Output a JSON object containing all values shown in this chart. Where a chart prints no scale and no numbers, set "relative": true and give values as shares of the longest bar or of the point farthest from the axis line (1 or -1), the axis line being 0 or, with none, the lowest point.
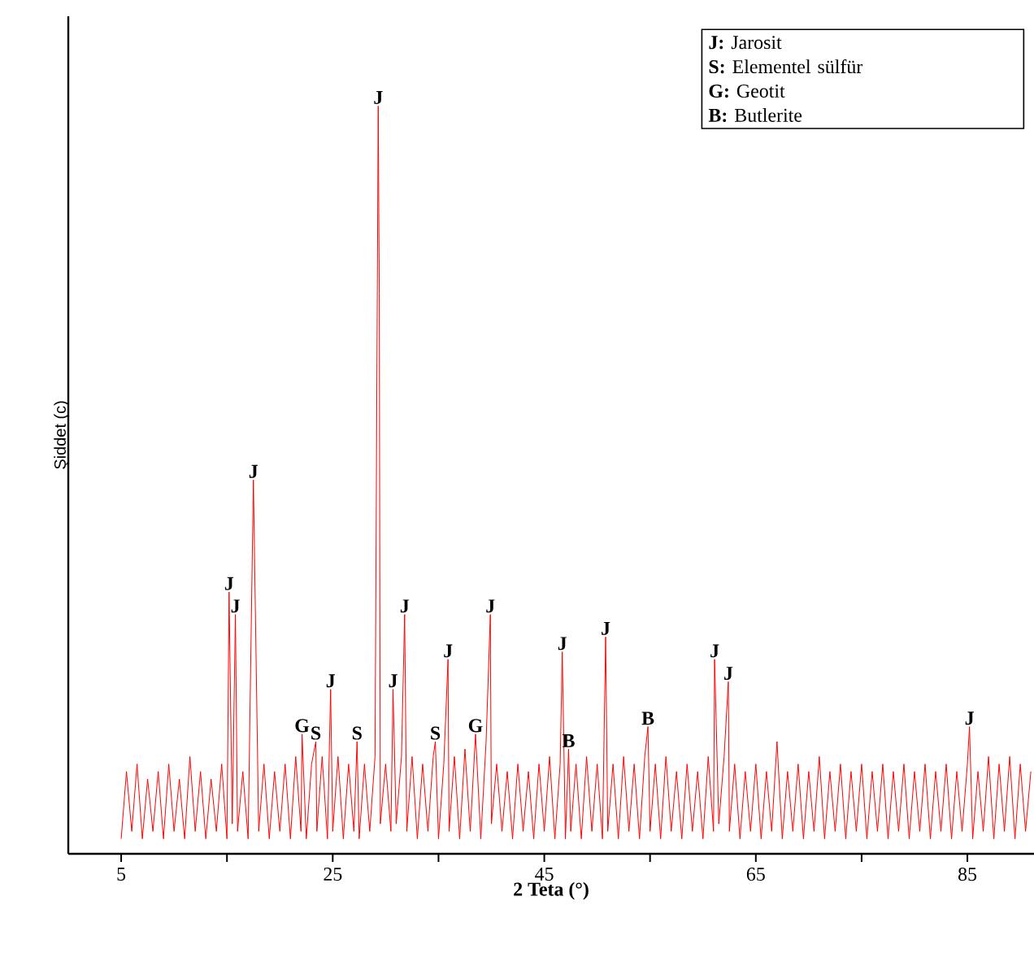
{
  "chart_data": {
    "type": "line",
    "relative": true,
    "xlabel": "2 Teta (°)",
    "ylabel": "Şiddet (c)",
    "color": "#ff0000",
    "tick_labels": "x",
    "xlim": [
      0,
      91.3
    ],
    "xticks": [
      5,
      {
        "value": 15,
        "label": null
      },
      25,
      {
        "value": 35,
        "label": null
      },
      45,
      {
        "value": 55,
        "label": null
      },
      65,
      {
        "value": 75,
        "label": null
      },
      85
    ],
    "x": [
      5,
      5.5,
      6,
      6.5,
      7,
      7.5,
      8,
      8.5,
      9,
      9.5,
      10,
      10.5,
      11,
      11.5,
      12,
      12.5,
      13,
      13.5,
      14,
      14.5,
      15,
      15.2,
      15.5,
      15.8,
      16,
      16.5,
      17,
      17.5,
      18,
      18.5,
      19,
      19.5,
      20,
      20.5,
      21,
      21.5,
      22,
      22.1,
      22.5,
      23,
      23.4,
      23.5,
      24,
      24.5,
      24.8,
      25,
      25.5,
      26,
      26.5,
      27,
      27.3,
      27.5,
      28,
      28.5,
      29,
      29.3,
      29.4,
      29.5,
      30,
      30.5,
      30.7,
      31,
      31.5,
      31.8,
      32,
      32.5,
      33,
      33.5,
      34,
      34.5,
      34.7,
      35,
      35.5,
      35.9,
      36,
      36.5,
      37,
      37.5,
      38,
      38.5,
      39,
      39.5,
      39.9,
      40,
      40.5,
      41,
      41.5,
      42,
      42.5,
      43,
      43.5,
      44,
      44.5,
      45,
      45.5,
      46,
      46.5,
      46.7,
      47,
      47.3,
      47.5,
      48,
      48.5,
      49,
      49.5,
      50,
      50.5,
      50.8,
      51,
      51.5,
      52,
      52.5,
      53,
      53.5,
      54,
      54.5,
      54.8,
      55,
      55.5,
      56,
      56.5,
      57,
      57.5,
      58,
      58.5,
      59,
      59.5,
      60,
      60.5,
      61,
      61.1,
      61.5,
      62,
      62.4,
      62.5,
      63,
      63.5,
      64,
      64.5,
      65,
      65.5,
      66,
      66.5,
      67,
      67.5,
      68,
      68.5,
      69,
      69.5,
      70,
      70.5,
      71,
      71.5,
      72,
      72.5,
      73,
      73.5,
      74,
      74.5,
      75,
      75.5,
      76,
      76.5,
      77,
      77.5,
      78,
      78.5,
      79,
      79.5,
      80,
      80.5,
      81,
      81.5,
      82,
      82.5,
      83,
      83.5,
      84,
      84.5,
      85,
      85.2,
      85.5,
      86,
      86.5,
      87,
      87.5,
      88,
      88.5,
      89,
      89.5,
      90,
      90.5,
      91
    ],
    "values": [
      0.02,
      0.11,
      0.03,
      0.12,
      0.02,
      0.1,
      0.03,
      0.11,
      0.02,
      0.12,
      0.03,
      0.1,
      0.02,
      0.13,
      0.03,
      0.11,
      0.02,
      0.1,
      0.03,
      0.12,
      0.02,
      0.35,
      0.04,
      0.32,
      0.03,
      0.11,
      0.02,
      0.5,
      0.03,
      0.12,
      0.02,
      0.11,
      0.03,
      0.12,
      0.02,
      0.13,
      0.03,
      0.16,
      0.02,
      0.12,
      0.15,
      0.03,
      0.13,
      0.02,
      0.22,
      0.03,
      0.13,
      0.02,
      0.12,
      0.03,
      0.15,
      0.02,
      0.12,
      0.03,
      0.13,
      1.0,
      0.75,
      0.04,
      0.12,
      0.03,
      0.22,
      0.04,
      0.13,
      0.32,
      0.03,
      0.13,
      0.02,
      0.12,
      0.03,
      0.13,
      0.15,
      0.02,
      0.12,
      0.26,
      0.03,
      0.13,
      0.02,
      0.14,
      0.03,
      0.16,
      0.02,
      0.15,
      0.32,
      0.04,
      0.12,
      0.03,
      0.11,
      0.02,
      0.12,
      0.03,
      0.11,
      0.02,
      0.12,
      0.03,
      0.13,
      0.02,
      0.12,
      0.27,
      0.02,
      0.14,
      0.03,
      0.12,
      0.02,
      0.13,
      0.03,
      0.12,
      0.02,
      0.29,
      0.03,
      0.12,
      0.02,
      0.13,
      0.03,
      0.12,
      0.02,
      0.13,
      0.17,
      0.03,
      0.12,
      0.02,
      0.13,
      0.03,
      0.11,
      0.02,
      0.12,
      0.03,
      0.11,
      0.02,
      0.13,
      0.03,
      0.26,
      0.04,
      0.13,
      0.23,
      0.03,
      0.12,
      0.02,
      0.11,
      0.03,
      0.12,
      0.02,
      0.11,
      0.03,
      0.15,
      0.02,
      0.11,
      0.03,
      0.12,
      0.02,
      0.11,
      0.03,
      0.13,
      0.02,
      0.11,
      0.03,
      0.12,
      0.02,
      0.11,
      0.03,
      0.12,
      0.02,
      0.11,
      0.03,
      0.12,
      0.02,
      0.11,
      0.03,
      0.12,
      0.02,
      0.11,
      0.03,
      0.12,
      0.02,
      0.11,
      0.03,
      0.12,
      0.02,
      0.11,
      0.03,
      0.12,
      0.17,
      0.02,
      0.11,
      0.03,
      0.13,
      0.02,
      0.12,
      0.03,
      0.13,
      0.02,
      0.12,
      0.03,
      0.11
    ],
    "annotations": [
      "**J:** Jarosit",
      "**S:** Elementel sülfür",
      "**G:** Geotit",
      "**B:** Butlerite",
      {
        "text": "J",
        "x": 15.2,
        "y": 0.35
      },
      {
        "text": "J",
        "x": 15.8,
        "y": 0.32
      },
      {
        "text": "J",
        "x": 17.5,
        "y": 0.5
      },
      {
        "text": "G",
        "x": 22.1,
        "y": 0.16
      },
      {
        "text": "S",
        "x": 23.4,
        "y": 0.15
      },
      {
        "text": "J",
        "x": 24.8,
        "y": 0.22
      },
      {
        "text": "S",
        "x": 27.3,
        "y": 0.15
      },
      {
        "text": "J",
        "x": 29.3,
        "y": 1.0
      },
      {
        "text": "J",
        "x": 30.7,
        "y": 0.22
      },
      {
        "text": "J",
        "x": 31.8,
        "y": 0.32
      },
      {
        "text": "S",
        "x": 34.7,
        "y": 0.15
      },
      {
        "text": "J",
        "x": 35.9,
        "y": 0.26
      },
      {
        "text": "G",
        "x": 38.5,
        "y": 0.16
      },
      {
        "text": "J",
        "x": 39.9,
        "y": 0.32
      },
      {
        "text": "J",
        "x": 46.7,
        "y": 0.27
      },
      {
        "text": "B",
        "x": 47.3,
        "y": 0.14
      },
      {
        "text": "J",
        "x": 50.8,
        "y": 0.29
      },
      {
        "text": "B",
        "x": 54.8,
        "y": 0.17
      },
      {
        "text": "J",
        "x": 61.1,
        "y": 0.26
      },
      {
        "text": "J",
        "x": 62.4,
        "y": 0.23
      },
      {
        "text": "J",
        "x": 85.2,
        "y": 0.17
      }
    ]
  }
}
